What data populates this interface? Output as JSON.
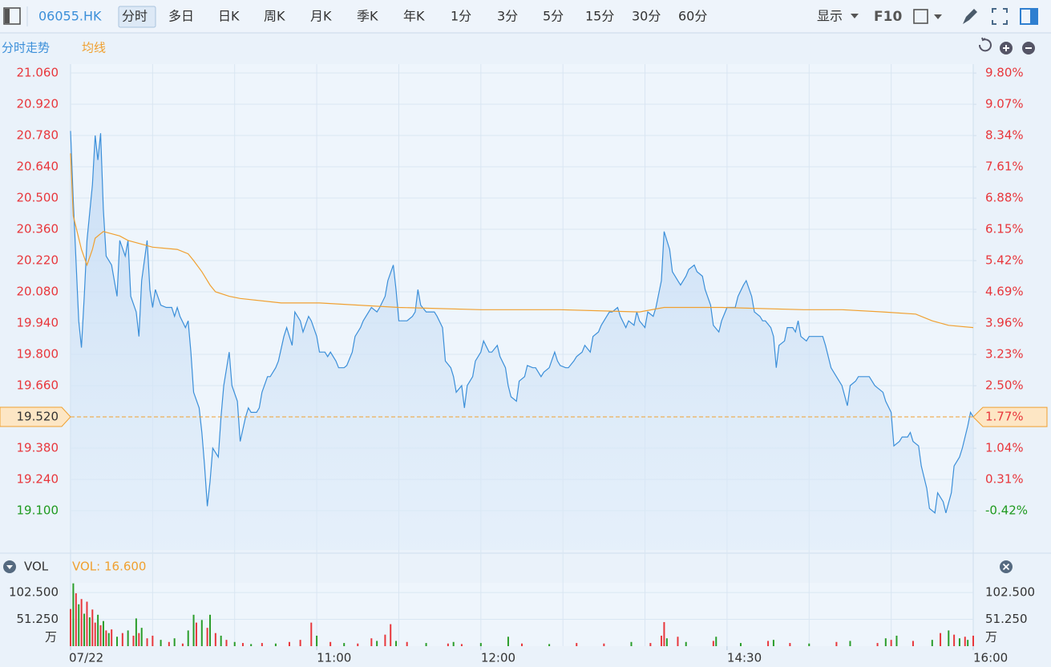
{
  "toolbar": {
    "symbol": "06055.HK",
    "tabs": [
      "分时",
      "多日",
      "日K",
      "周K",
      "月K",
      "季K",
      "年K",
      "1分",
      "3分",
      "5分",
      "15分",
      "30分",
      "60分"
    ],
    "selected": 0,
    "display": "显示",
    "f10": "F10"
  },
  "chart_data": [
    {
      "type": "line",
      "series": [
        {
          "name": "分时走势",
          "color": "#3b8fd9",
          "x": [
            0,
            1,
            3,
            4,
            5,
            6,
            8,
            9,
            10,
            11,
            12,
            13,
            15,
            17,
            18,
            20,
            21,
            22,
            24,
            25,
            26,
            28,
            29,
            30,
            31,
            33,
            35,
            37,
            38,
            39,
            40,
            42,
            43,
            44,
            45,
            47,
            48,
            49,
            50,
            51,
            52,
            54,
            55,
            56,
            58,
            59,
            61,
            62,
            64,
            65,
            66,
            68,
            69,
            70,
            72,
            73,
            75,
            76,
            78,
            79,
            81,
            82,
            84,
            85,
            87,
            88,
            90,
            91,
            93,
            94,
            95,
            97,
            98,
            100,
            101,
            103,
            104,
            106,
            107,
            109,
            110,
            112,
            113,
            115,
            116,
            118,
            119,
            120,
            122,
            123,
            125,
            126,
            127,
            128,
            130,
            132,
            133,
            134,
            136,
            137,
            139,
            140,
            141,
            143,
            144,
            145,
            147,
            148,
            150,
            151,
            153,
            154,
            156,
            157,
            159,
            160,
            161,
            163,
            164,
            166,
            167,
            169,
            170,
            172,
            173,
            175,
            177,
            178,
            179,
            181,
            182,
            184,
            185,
            187,
            188,
            190,
            191,
            193,
            194,
            196,
            197,
            198,
            200,
            201,
            203,
            204,
            206,
            207,
            208,
            210,
            211,
            213,
            214,
            216,
            217,
            219,
            220,
            222,
            223,
            225,
            226,
            228,
            229,
            231,
            232,
            234,
            235,
            237,
            238,
            240,
            241,
            243,
            244,
            246,
            247,
            249,
            250,
            252,
            253,
            254,
            256,
            257,
            258,
            259,
            261,
            262,
            264,
            265,
            266,
            267,
            269,
            270,
            272,
            273,
            275,
            276,
            278,
            279,
            281,
            282,
            284,
            285,
            287,
            288,
            290,
            291,
            292,
            294,
            295,
            297,
            298,
            300,
            301,
            303,
            304,
            306,
            307,
            308,
            310,
            311,
            313,
            314,
            316,
            317,
            319,
            320,
            322,
            323,
            325,
            326,
            328,
            329,
            330
          ],
          "values": [
            20.8,
            20.49,
            19.95,
            19.83,
            20.06,
            20.31,
            20.56,
            20.78,
            20.67,
            20.79,
            20.45,
            20.24,
            20.2,
            20.06,
            20.31,
            20.24,
            20.31,
            20.06,
            19.99,
            19.88,
            20.13,
            20.31,
            20.09,
            20.01,
            20.09,
            20.02,
            20.01,
            20.01,
            19.97,
            20.01,
            19.97,
            19.92,
            19.95,
            19.81,
            19.63,
            19.56,
            19.45,
            19.3,
            19.12,
            19.23,
            19.38,
            19.34,
            19.52,
            19.66,
            19.81,
            19.66,
            19.59,
            19.41,
            19.52,
            19.56,
            19.54,
            19.54,
            19.56,
            19.63,
            19.7,
            19.7,
            19.74,
            19.77,
            19.88,
            19.92,
            19.84,
            19.99,
            19.95,
            19.9,
            19.97,
            19.95,
            19.88,
            19.81,
            19.81,
            19.79,
            19.81,
            19.77,
            19.74,
            19.74,
            19.75,
            19.81,
            19.88,
            19.92,
            19.95,
            19.99,
            20.01,
            19.99,
            20.01,
            20.06,
            20.13,
            20.2,
            20.09,
            19.95,
            19.95,
            19.95,
            19.97,
            19.99,
            20.09,
            20.02,
            19.99,
            19.99,
            19.99,
            19.97,
            19.92,
            19.77,
            19.74,
            19.7,
            19.63,
            19.66,
            19.56,
            19.66,
            19.7,
            19.77,
            19.81,
            19.86,
            19.81,
            19.81,
            19.84,
            19.79,
            19.74,
            19.66,
            19.61,
            19.59,
            19.68,
            19.7,
            19.75,
            19.74,
            19.74,
            19.7,
            19.72,
            19.74,
            19.81,
            19.77,
            19.75,
            19.74,
            19.74,
            19.77,
            19.79,
            19.81,
            19.84,
            19.81,
            19.88,
            19.9,
            19.93,
            19.97,
            19.99,
            19.99,
            20.01,
            19.97,
            19.92,
            19.95,
            19.93,
            19.99,
            19.95,
            19.92,
            19.99,
            19.97,
            20.01,
            20.13,
            20.35,
            20.27,
            20.17,
            20.13,
            20.11,
            20.15,
            20.18,
            20.2,
            20.17,
            20.15,
            20.09,
            20.02,
            19.93,
            19.9,
            19.95,
            20.01,
            20.01,
            20.01,
            20.06,
            20.11,
            20.13,
            20.06,
            19.99,
            19.97,
            19.95,
            19.95,
            19.92,
            19.88,
            19.74,
            19.84,
            19.86,
            19.92,
            19.92,
            19.9,
            19.95,
            19.88,
            19.86,
            19.88,
            19.88,
            19.88,
            19.88,
            19.84,
            19.74,
            19.72,
            19.68,
            19.66,
            19.57,
            19.66,
            19.68,
            19.7,
            19.7,
            19.7,
            19.7,
            19.66,
            19.65,
            19.63,
            19.59,
            19.54,
            19.39,
            19.41,
            19.43,
            19.43,
            19.45,
            19.41,
            19.39,
            19.3,
            19.2,
            19.11,
            19.09,
            19.18,
            19.14,
            19.09,
            19.18,
            19.3,
            19.34,
            19.38,
            19.48,
            19.54,
            19.52
          ]
        },
        {
          "name": "均线",
          "color": "#f0a030",
          "x": [
            0,
            1,
            4,
            6,
            8,
            9,
            12,
            15,
            18,
            21,
            24,
            30,
            39,
            43,
            45,
            48,
            51,
            53,
            58,
            62,
            77,
            91,
            120,
            150,
            179,
            208,
            217,
            238,
            268,
            282,
            297,
            309,
            315,
            321,
            330
          ],
          "values": [
            20.7,
            20.42,
            20.27,
            20.2,
            20.27,
            20.32,
            20.35,
            20.34,
            20.33,
            20.31,
            20.3,
            20.28,
            20.27,
            20.25,
            20.22,
            20.17,
            20.11,
            20.08,
            20.06,
            20.05,
            20.03,
            20.03,
            20.01,
            20.0,
            20.0,
            19.99,
            20.01,
            20.01,
            20.0,
            20.0,
            19.99,
            19.98,
            19.95,
            19.93,
            19.92
          ]
        }
      ],
      "xlim": [
        0,
        330
      ],
      "xticks": [
        {
          "value": 0,
          "label": "07/22"
        },
        {
          "value": 90,
          "label": "11:00"
        },
        {
          "value": 150,
          "label": "12:00"
        },
        {
          "value": 240,
          "label": "14:30"
        },
        {
          "value": 330,
          "label": "16:00"
        }
      ],
      "ylim": [
        18.924,
        21.0995
      ],
      "yticks": [
        {
          "value": 21.06,
          "label": "21.060"
        },
        {
          "value": 20.92,
          "label": "20.920"
        },
        {
          "value": 20.78,
          "label": "20.780"
        },
        {
          "value": 20.64,
          "label": "20.640"
        },
        {
          "value": 20.5,
          "label": "20.500"
        },
        {
          "value": 20.36,
          "label": "20.360"
        },
        {
          "value": 20.22,
          "label": "20.220"
        },
        {
          "value": 20.08,
          "label": "20.080"
        },
        {
          "value": 19.94,
          "label": "19.940"
        },
        {
          "value": 19.8,
          "label": "19.800"
        },
        {
          "value": 19.66,
          "label": "19.660"
        },
        {
          "value": 19.38,
          "label": "19.380"
        },
        {
          "value": 19.24,
          "label": "19.240"
        },
        {
          "value": 19.1,
          "label": "19.100"
        }
      ],
      "y2lim": [
        -1.335,
        10.008
      ],
      "y2ticks": [
        {
          "value": 9.8,
          "label": "9.80%"
        },
        {
          "value": 9.07,
          "label": "9.07%"
        },
        {
          "value": 8.34,
          "label": "8.34%"
        },
        {
          "value": 7.61,
          "label": "7.61%"
        },
        {
          "value": 6.88,
          "label": "6.88%"
        },
        {
          "value": 6.15,
          "label": "6.15%"
        },
        {
          "value": 5.42,
          "label": "5.42%"
        },
        {
          "value": 4.69,
          "label": "4.69%"
        },
        {
          "value": 3.96,
          "label": "3.96%"
        },
        {
          "value": 3.23,
          "label": "3.23%"
        },
        {
          "value": 2.5,
          "label": "2.50%"
        },
        {
          "value": 1.04,
          "label": "1.04%"
        },
        {
          "value": 0.31,
          "label": "0.31%"
        },
        {
          "value": -0.42,
          "label": "-0.42%"
        }
      ],
      "last_price": {
        "value": 19.52,
        "label": "19.520"
      },
      "last_change": {
        "value": 1.77,
        "label": "1.77%"
      },
      "up_color": "#e8373c",
      "down_color": "#1f9a1f",
      "grid": true
    },
    {
      "type": "bar",
      "title": "VOL",
      "subtitle": "VOL: 16.600",
      "unit": "万",
      "x": [
        0,
        1,
        2,
        3,
        4,
        5,
        6,
        7,
        8,
        9,
        10,
        11,
        12,
        13,
        14,
        15,
        17,
        19,
        21,
        23,
        24,
        25,
        26,
        28,
        30,
        33,
        36,
        38,
        41,
        43,
        45,
        46,
        48,
        50,
        51,
        53,
        55,
        57,
        60,
        63,
        66,
        70,
        75,
        80,
        84,
        88,
        90,
        95,
        100,
        105,
        110,
        112,
        115,
        117,
        119,
        123,
        130,
        138,
        140,
        143,
        150,
        160,
        165,
        175,
        185,
        195,
        205,
        212,
        216,
        217,
        218,
        222,
        225,
        235,
        236,
        245,
        255,
        257,
        263,
        270,
        280,
        285,
        295,
        298,
        300,
        302,
        308,
        315,
        318,
        321,
        323,
        325,
        327,
        328,
        330
      ],
      "values": [
        71,
        120,
        101,
        80,
        90,
        62,
        85,
        55,
        70,
        45,
        60,
        40,
        48,
        30,
        25,
        32,
        18,
        25,
        30,
        20,
        53,
        25,
        35,
        15,
        20,
        12,
        8,
        15,
        5,
        30,
        60,
        45,
        50,
        35,
        60,
        25,
        20,
        12,
        8,
        6,
        4,
        6,
        5,
        8,
        12,
        45,
        20,
        8,
        6,
        5,
        15,
        10,
        22,
        42,
        10,
        8,
        6,
        5,
        8,
        4,
        6,
        18,
        5,
        4,
        6,
        5,
        8,
        6,
        20,
        46,
        15,
        18,
        8,
        10,
        18,
        6,
        10,
        12,
        6,
        5,
        8,
        10,
        6,
        15,
        12,
        20,
        10,
        12,
        25,
        30,
        22,
        15,
        18,
        12,
        20
      ],
      "colors": [
        "#e8373c",
        "#2a9d2a",
        "#e8373c",
        "#2a9d2a",
        "#e8373c",
        "#2a9d2a",
        "#e8373c",
        "#2a9d2a",
        "#e8373c",
        "#e8373c",
        "#2a9d2a",
        "#e8373c",
        "#2a9d2a",
        "#e8373c",
        "#2a9d2a",
        "#e8373c",
        "#2a9d2a",
        "#e8373c",
        "#2a9d2a",
        "#e8373c",
        "#2a9d2a",
        "#e8373c",
        "#2a9d2a",
        "#e8373c",
        "#e8373c",
        "#2a9d2a",
        "#e8373c",
        "#2a9d2a",
        "#e8373c",
        "#2a9d2a",
        "#2a9d2a",
        "#e8373c",
        "#2a9d2a",
        "#e8373c",
        "#2a9d2a",
        "#e8373c",
        "#2a9d2a",
        "#e8373c",
        "#2a9d2a",
        "#e8373c",
        "#2a9d2a",
        "#e8373c",
        "#2a9d2a",
        "#e8373c",
        "#e8373c",
        "#e8373c",
        "#2a9d2a",
        "#e8373c",
        "#2a9d2a",
        "#e8373c",
        "#e8373c",
        "#2a9d2a",
        "#e8373c",
        "#e8373c",
        "#2a9d2a",
        "#e8373c",
        "#2a9d2a",
        "#e8373c",
        "#2a9d2a",
        "#e8373c",
        "#2a9d2a",
        "#2a9d2a",
        "#e8373c",
        "#2a9d2a",
        "#e8373c",
        "#e8373c",
        "#2a9d2a",
        "#e8373c",
        "#e8373c",
        "#e8373c",
        "#2a9d2a",
        "#e8373c",
        "#2a9d2a",
        "#e8373c",
        "#2a9d2a",
        "#2a9d2a",
        "#e8373c",
        "#2a9d2a",
        "#e8373c",
        "#2a9d2a",
        "#e8373c",
        "#2a9d2a",
        "#e8373c",
        "#2a9d2a",
        "#e8373c",
        "#2a9d2a",
        "#e8373c",
        "#2a9d2a",
        "#e8373c",
        "#2a9d2a",
        "#e8373c",
        "#2a9d2a",
        "#e8373c",
        "#2a9d2a",
        "#e8373c"
      ],
      "ylim": [
        0,
        121
      ],
      "yticks": [
        {
          "value": 102.5,
          "label": "102.500"
        },
        {
          "value": 51.25,
          "label": "51.250"
        }
      ]
    }
  ]
}
